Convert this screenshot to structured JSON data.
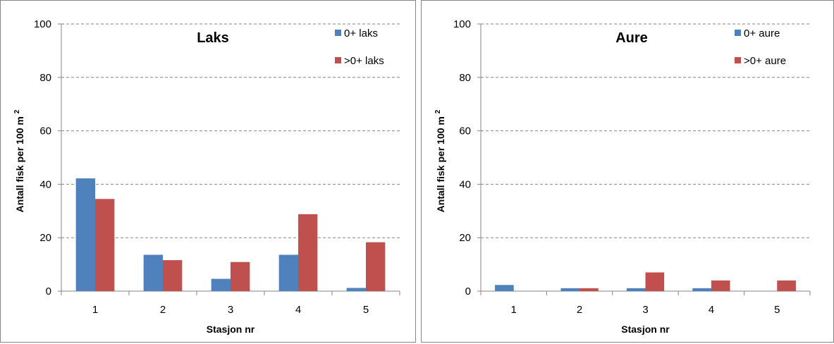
{
  "chart_data": [
    {
      "type": "bar",
      "title": "Laks",
      "xlabel": "Stasjon nr",
      "ylabel": "Antall fisk per 100 m",
      "ylabel_sup": "2",
      "categories": [
        "1",
        "2",
        "3",
        "4",
        "5"
      ],
      "ylim": [
        0,
        100
      ],
      "yticks": [
        "0",
        "20",
        "40",
        "60",
        "80",
        "100"
      ],
      "grid": true,
      "legend_position": "top-right",
      "series": [
        {
          "name": "0+ laks",
          "color": "#4f81bd",
          "values": [
            42.2,
            13.6,
            4.6,
            13.6,
            1.2
          ]
        },
        {
          "name": ">0+ laks",
          "color": "#c0504d",
          "values": [
            34.5,
            11.6,
            10.9,
            28.8,
            18.3
          ]
        }
      ]
    },
    {
      "type": "bar",
      "title": "Aure",
      "xlabel": "Stasjon nr",
      "ylabel": "Antall fisk per 100 m",
      "ylabel_sup": "2",
      "categories": [
        "1",
        "2",
        "3",
        "4",
        "5"
      ],
      "ylim": [
        0,
        100
      ],
      "yticks": [
        "0",
        "20",
        "40",
        "60",
        "80",
        "100"
      ],
      "grid": true,
      "legend_position": "top-right",
      "series": [
        {
          "name": "0+ aure",
          "color": "#4f81bd",
          "values": [
            2.3,
            1.1,
            1.1,
            1.1,
            0
          ]
        },
        {
          "name": ">0+ aure",
          "color": "#c0504d",
          "values": [
            0,
            1.1,
            7.0,
            4.0,
            4.0
          ]
        }
      ]
    }
  ]
}
